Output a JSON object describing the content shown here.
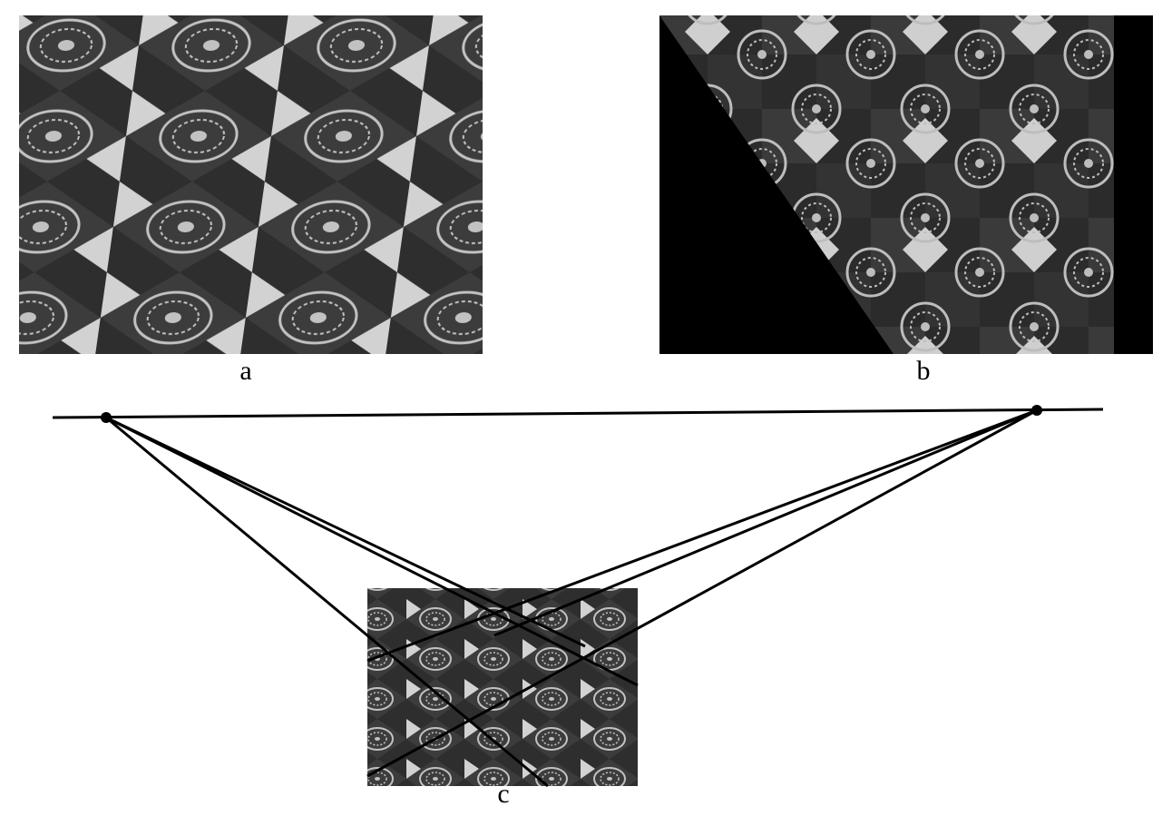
{
  "figure": {
    "panels": [
      {
        "id": "a",
        "label": "a",
        "image": "floor-tile-photo-perspective"
      },
      {
        "id": "b",
        "label": "b",
        "image": "floor-tile-photo-rectified"
      },
      {
        "id": "c",
        "label": "c",
        "image": "floor-tile-photo-with-vanishing-lines"
      }
    ],
    "vanishing_points": 2,
    "lines_per_vanishing_point": 3,
    "colors": {
      "background": "#ffffff",
      "ink": "#000000",
      "tile_dark": "#2b2b2b",
      "tile_light": "#cfcfcf",
      "medallion": "#bdbdbd"
    }
  }
}
